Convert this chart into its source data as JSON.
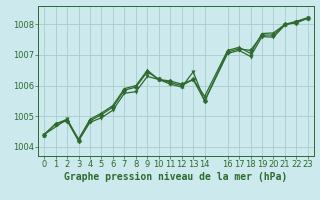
{
  "title": "Graphe pression niveau de la mer (hPa)",
  "bg_color": "#cce9ee",
  "line_color": "#2d6a2d",
  "grid_color": "#aacccc",
  "xlim": [
    -0.5,
    23.5
  ],
  "ylim": [
    1003.7,
    1008.6
  ],
  "yticks": [
    1004,
    1005,
    1006,
    1007,
    1008
  ],
  "xticks": [
    0,
    1,
    2,
    3,
    4,
    5,
    6,
    7,
    8,
    9,
    10,
    11,
    12,
    13,
    14,
    16,
    17,
    18,
    19,
    20,
    21,
    22,
    23
  ],
  "line1_x": [
    0,
    1,
    2,
    3,
    4,
    5,
    6,
    7,
    8,
    9,
    10,
    11,
    12,
    13,
    14,
    16,
    17,
    18,
    19,
    20,
    21,
    22,
    23
  ],
  "line1_y": [
    1004.4,
    1004.75,
    1004.85,
    1004.2,
    1004.85,
    1005.05,
    1005.3,
    1005.85,
    1005.95,
    1006.45,
    1006.2,
    1006.15,
    1006.05,
    1006.2,
    1005.5,
    1007.1,
    1007.2,
    1007.15,
    1007.65,
    1007.65,
    1008.0,
    1008.05,
    1008.2
  ],
  "line2_x": [
    0,
    1,
    2,
    3,
    4,
    5,
    6,
    7,
    8,
    9,
    10,
    11,
    12,
    13,
    14,
    16,
    17,
    18,
    19,
    20,
    21,
    22,
    23
  ],
  "line2_y": [
    1004.4,
    1004.75,
    1004.9,
    1004.25,
    1004.9,
    1005.1,
    1005.35,
    1005.9,
    1006.0,
    1006.5,
    1006.2,
    1006.1,
    1006.0,
    1006.2,
    1005.65,
    1007.15,
    1007.25,
    1007.05,
    1007.7,
    1007.72,
    1008.0,
    1008.1,
    1008.22
  ],
  "line3_x": [
    0,
    2,
    3,
    4,
    5,
    6,
    7,
    8,
    9,
    10,
    11,
    12,
    13,
    14,
    16,
    17,
    18,
    19,
    20,
    21,
    22,
    23
  ],
  "line3_y": [
    1004.4,
    1004.9,
    1004.2,
    1004.8,
    1004.95,
    1005.2,
    1005.75,
    1005.8,
    1006.3,
    1006.2,
    1006.05,
    1005.95,
    1006.45,
    1005.5,
    1007.05,
    1007.15,
    1006.95,
    1007.6,
    1007.58,
    1007.98,
    1008.08,
    1008.2
  ],
  "title_fontsize": 7,
  "tick_fontsize": 6
}
